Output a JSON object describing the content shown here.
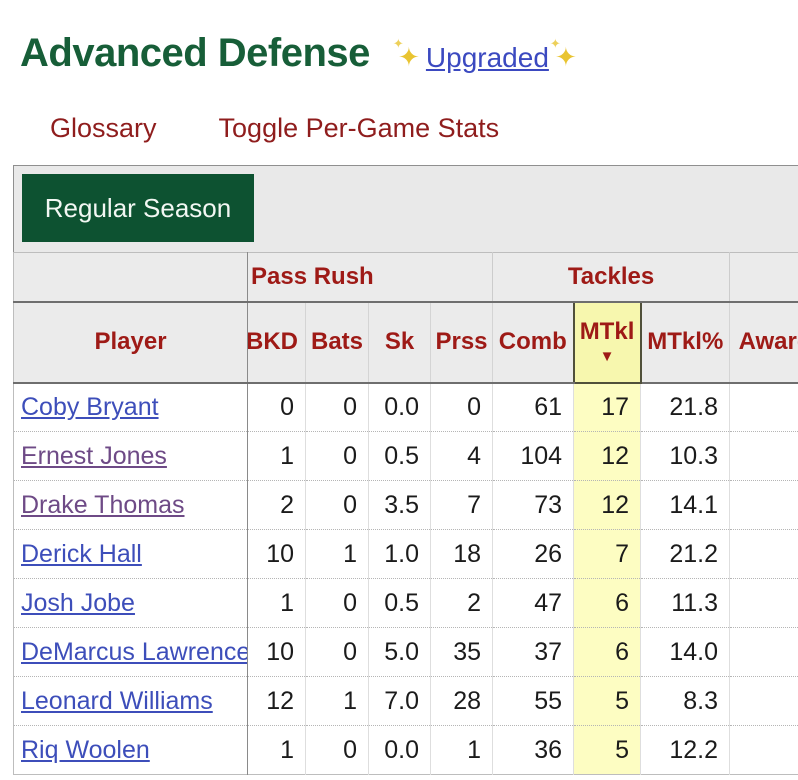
{
  "page": {
    "title": "Advanced Defense",
    "upgraded_label": "Upgraded",
    "sparkle_icon": "✦"
  },
  "nav": {
    "glossary_label": "Glossary",
    "toggle_label": "Toggle Per-Game Stats"
  },
  "toolbar": {
    "season_button_label": "Regular Season"
  },
  "table": {
    "group_headers": {
      "pass_rush": "Pass Rush",
      "tackles": "Tackles"
    },
    "columns": [
      "Player",
      "QBKD",
      "Bats",
      "Sk",
      "Prss",
      "Comb",
      "MTkl",
      "MTkl%",
      "Award"
    ],
    "sort": {
      "column": "MTkl",
      "direction": "desc",
      "arrow": "▼"
    },
    "rows": [
      {
        "player": "Coby Bryant",
        "visited": false,
        "qbkd": "0",
        "bats": "0",
        "sk": "0.0",
        "prss": "0",
        "comb": "61",
        "mtkl": "17",
        "mtkl_pct": "21.8",
        "award": ""
      },
      {
        "player": "Ernest Jones",
        "visited": true,
        "qbkd": "1",
        "bats": "0",
        "sk": "0.5",
        "prss": "4",
        "comb": "104",
        "mtkl": "12",
        "mtkl_pct": "10.3",
        "award": ""
      },
      {
        "player": "Drake Thomas",
        "visited": true,
        "qbkd": "2",
        "bats": "0",
        "sk": "3.5",
        "prss": "7",
        "comb": "73",
        "mtkl": "12",
        "mtkl_pct": "14.1",
        "award": ""
      },
      {
        "player": "Derick Hall",
        "visited": false,
        "qbkd": "10",
        "bats": "1",
        "sk": "1.0",
        "prss": "18",
        "comb": "26",
        "mtkl": "7",
        "mtkl_pct": "21.2",
        "award": ""
      },
      {
        "player": "Josh Jobe",
        "visited": false,
        "qbkd": "1",
        "bats": "0",
        "sk": "0.5",
        "prss": "2",
        "comb": "47",
        "mtkl": "6",
        "mtkl_pct": "11.3",
        "award": ""
      },
      {
        "player": "DeMarcus Lawrence",
        "visited": false,
        "qbkd": "10",
        "bats": "0",
        "sk": "5.0",
        "prss": "35",
        "comb": "37",
        "mtkl": "6",
        "mtkl_pct": "14.0",
        "award": ""
      },
      {
        "player": "Leonard Williams",
        "visited": false,
        "qbkd": "12",
        "bats": "1",
        "sk": "7.0",
        "prss": "28",
        "comb": "55",
        "mtkl": "5",
        "mtkl_pct": "8.3",
        "award": ""
      },
      {
        "player": "Riq Woolen",
        "visited": false,
        "qbkd": "1",
        "bats": "0",
        "sk": "0.0",
        "prss": "1",
        "comb": "36",
        "mtkl": "5",
        "mtkl_pct": "12.2",
        "award": ""
      }
    ]
  },
  "colors": {
    "title_green": "#175e38",
    "header_maroon": "#9e1a16",
    "button_green": "#0d5231",
    "link_blue": "#3d4eba",
    "link_visited_purple": "#6e4a86",
    "sort_column_yellow": "#fdfdc2",
    "sorted_header_yellow": "#f7f7ae"
  }
}
